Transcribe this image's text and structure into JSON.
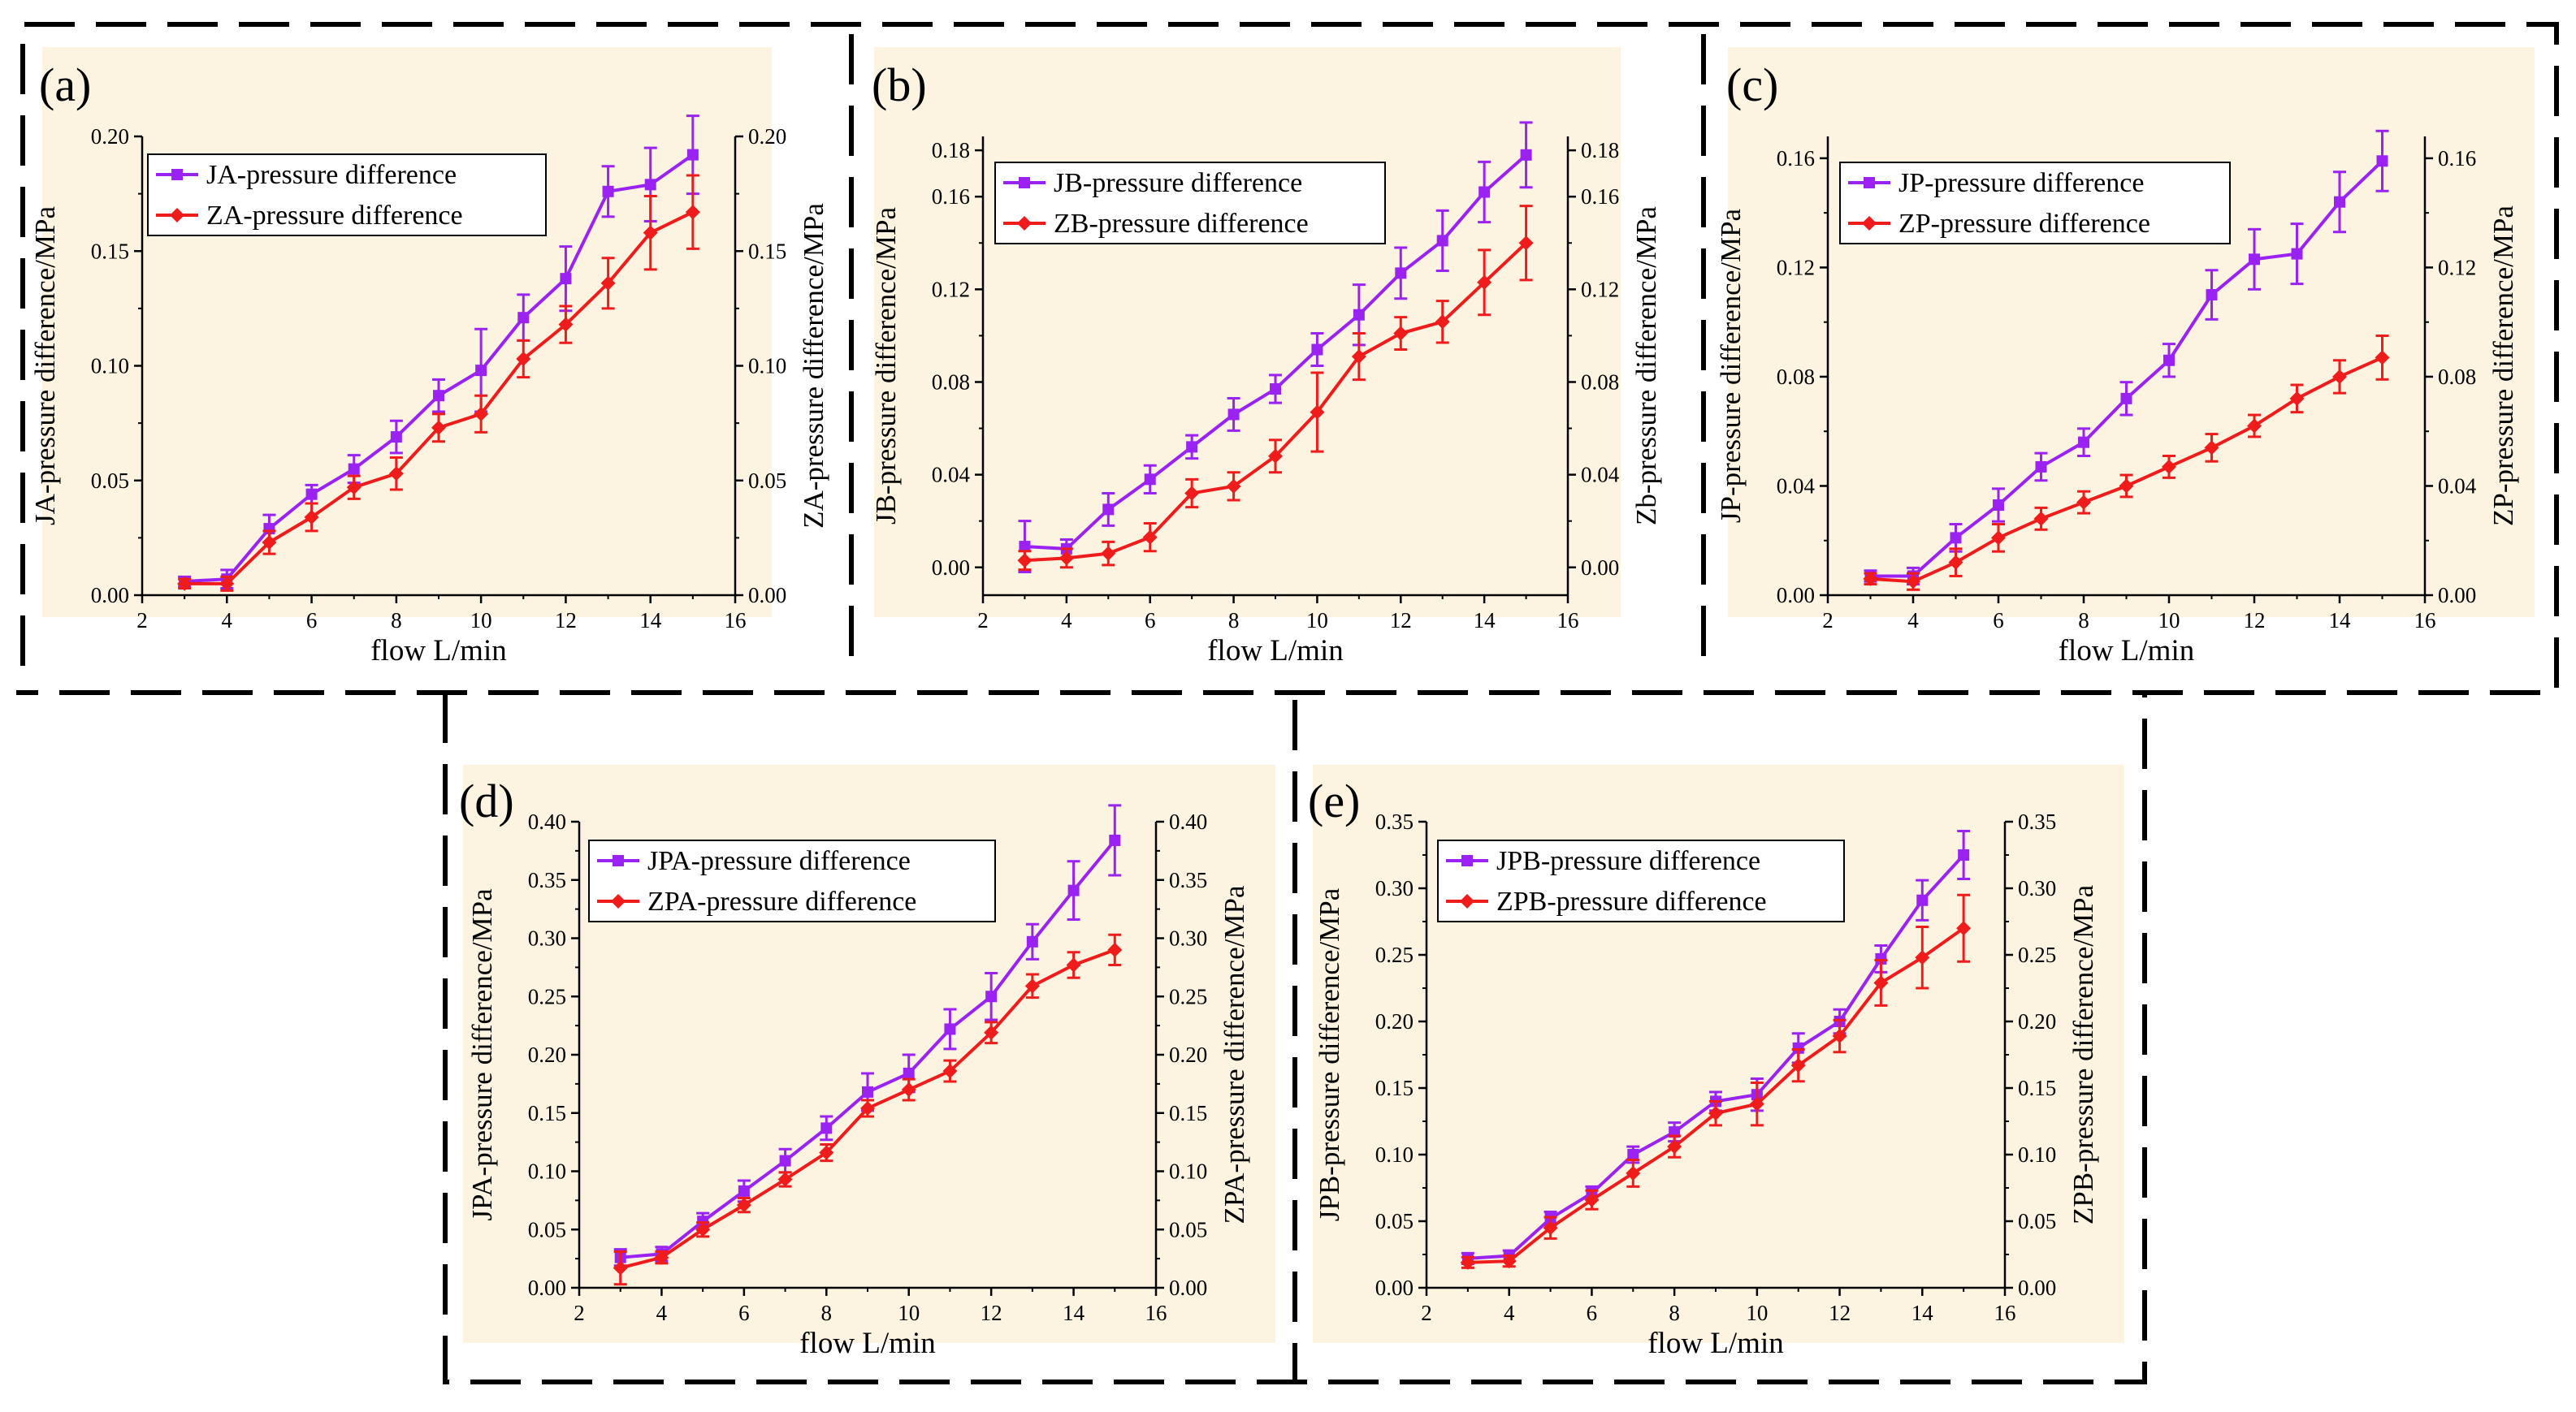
{
  "colors": {
    "panel_bg": "#fdf3e1",
    "series1": "#9a22f2",
    "series2": "#f01c1c",
    "border": "#000000"
  },
  "chart_data": [
    {
      "id": "a",
      "label": "(a)",
      "type": "line",
      "x": [
        3,
        4,
        5,
        6,
        7,
        8,
        9,
        10,
        11,
        12,
        13,
        14,
        15
      ],
      "xlabel": "flow L/min",
      "xlim": [
        2,
        16
      ],
      "xticks": [
        2,
        4,
        6,
        8,
        10,
        12,
        14,
        16
      ],
      "ylabel": "JA-pressure difference/MPa",
      "ylabel_right": "ZA-pressure difference/MPa",
      "ylim": [
        0,
        0.2
      ],
      "yticks": [
        "0.00",
        "0.05",
        "0.10",
        "0.15",
        "0.20"
      ],
      "series": [
        {
          "name": "JA-pressure difference",
          "values": [
            0.006,
            0.007,
            0.029,
            0.044,
            0.055,
            0.069,
            0.087,
            0.098,
            0.121,
            0.138,
            0.176,
            0.179,
            0.192
          ],
          "errors": [
            0.002,
            0.004,
            0.006,
            0.004,
            0.006,
            0.007,
            0.007,
            0.018,
            0.01,
            0.014,
            0.011,
            0.016,
            0.017
          ]
        },
        {
          "name": "ZA-pressure difference",
          "values": [
            0.005,
            0.005,
            0.023,
            0.034,
            0.047,
            0.053,
            0.073,
            0.079,
            0.103,
            0.118,
            0.136,
            0.158,
            0.167
          ],
          "errors": [
            0.002,
            0.003,
            0.005,
            0.006,
            0.005,
            0.007,
            0.006,
            0.008,
            0.008,
            0.008,
            0.011,
            0.016,
            0.016
          ]
        }
      ]
    },
    {
      "id": "b",
      "label": "(b)",
      "type": "line",
      "x": [
        3,
        4,
        5,
        6,
        7,
        8,
        9,
        10,
        11,
        12,
        13,
        14,
        15
      ],
      "xlabel": "flow L/min",
      "xlim": [
        2,
        16
      ],
      "xticks": [
        2,
        4,
        6,
        8,
        10,
        12,
        14,
        16
      ],
      "ylabel": "JB-pressure difference/MPa",
      "ylabel_right": "Zb-pressure difference/MPa",
      "ylim": [
        -0.012,
        0.186
      ],
      "yticks": [
        "0.00",
        "0.04",
        "0.08",
        "0.12",
        "0.16"
      ],
      "ytick_values": [
        0,
        0.04,
        0.08,
        0.12,
        0.16
      ],
      "extra_yticks": [
        "0.18"
      ],
      "extra_ytick_values": [
        0.18
      ],
      "series": [
        {
          "name": "JB-pressure difference",
          "values": [
            0.009,
            0.008,
            0.025,
            0.038,
            0.052,
            0.066,
            0.077,
            0.094,
            0.109,
            0.127,
            0.141,
            0.162,
            0.178
          ],
          "errors": [
            0.011,
            0.004,
            0.007,
            0.006,
            0.005,
            0.007,
            0.006,
            0.007,
            0.013,
            0.011,
            0.013,
            0.013,
            0.014
          ]
        },
        {
          "name": "ZB-pressure difference",
          "values": [
            0.003,
            0.004,
            0.006,
            0.013,
            0.032,
            0.035,
            0.048,
            0.067,
            0.091,
            0.101,
            0.106,
            0.123,
            0.14
          ],
          "errors": [
            0.004,
            0.004,
            0.005,
            0.006,
            0.006,
            0.006,
            0.007,
            0.017,
            0.01,
            0.007,
            0.009,
            0.014,
            0.016
          ]
        }
      ]
    },
    {
      "id": "c",
      "label": "(c)",
      "type": "line",
      "x": [
        3,
        4,
        5,
        6,
        7,
        8,
        9,
        10,
        11,
        12,
        13,
        14,
        15
      ],
      "xlabel": "flow L/min",
      "xlim": [
        2,
        16
      ],
      "xticks": [
        2,
        4,
        6,
        8,
        10,
        12,
        14,
        16
      ],
      "ylabel": "JP-pressure difference/MPa",
      "ylabel_right": "ZP-pressure difference/MPa",
      "ylim": [
        0,
        0.168
      ],
      "yticks": [
        "0.00",
        "0.04",
        "0.08",
        "0.12",
        "0.16"
      ],
      "ytick_values": [
        0,
        0.04,
        0.08,
        0.12,
        0.16
      ],
      "series": [
        {
          "name": "JP-pressure difference",
          "values": [
            0.007,
            0.007,
            0.021,
            0.033,
            0.047,
            0.056,
            0.072,
            0.086,
            0.11,
            0.123,
            0.125,
            0.144,
            0.159
          ],
          "errors": [
            0.002,
            0.003,
            0.005,
            0.006,
            0.005,
            0.005,
            0.006,
            0.006,
            0.009,
            0.011,
            0.011,
            0.011,
            0.011
          ]
        },
        {
          "name": "ZP-pressure difference",
          "values": [
            0.006,
            0.005,
            0.012,
            0.021,
            0.028,
            0.034,
            0.04,
            0.047,
            0.054,
            0.062,
            0.072,
            0.08,
            0.087
          ],
          "errors": [
            0.002,
            0.003,
            0.005,
            0.005,
            0.004,
            0.004,
            0.004,
            0.004,
            0.005,
            0.004,
            0.005,
            0.006,
            0.008
          ]
        }
      ]
    },
    {
      "id": "d",
      "label": "(d)",
      "type": "line",
      "x": [
        3,
        4,
        5,
        6,
        7,
        8,
        9,
        10,
        11,
        12,
        13,
        14,
        15
      ],
      "xlabel": "flow L/min",
      "xlim": [
        2,
        16
      ],
      "xticks": [
        2,
        4,
        6,
        8,
        10,
        12,
        14,
        16
      ],
      "ylabel": "JPA-pressure difference/MPa",
      "ylabel_right": "ZPA-pressure difference/MPa",
      "ylim": [
        0,
        0.4
      ],
      "yticks": [
        "0.00",
        "0.05",
        "0.10",
        "0.15",
        "0.20",
        "0.25",
        "0.30",
        "0.35",
        "0.40"
      ],
      "series": [
        {
          "name": "JPA-pressure difference",
          "values": [
            0.026,
            0.029,
            0.057,
            0.083,
            0.109,
            0.137,
            0.168,
            0.184,
            0.222,
            0.25,
            0.297,
            0.341,
            0.384
          ],
          "errors": [
            0.007,
            0.006,
            0.007,
            0.009,
            0.01,
            0.01,
            0.016,
            0.016,
            0.017,
            0.02,
            0.015,
            0.025,
            0.03
          ]
        },
        {
          "name": "ZPA-pressure difference",
          "values": [
            0.017,
            0.026,
            0.05,
            0.071,
            0.093,
            0.116,
            0.154,
            0.17,
            0.186,
            0.219,
            0.259,
            0.277,
            0.29
          ],
          "errors": [
            0.014,
            0.005,
            0.006,
            0.006,
            0.006,
            0.007,
            0.007,
            0.009,
            0.009,
            0.009,
            0.01,
            0.011,
            0.013
          ]
        }
      ]
    },
    {
      "id": "e",
      "label": "(e)",
      "type": "line",
      "x": [
        3,
        4,
        5,
        6,
        7,
        8,
        9,
        10,
        11,
        12,
        13,
        14,
        15
      ],
      "xlabel": "flow L/min",
      "xlim": [
        2,
        16
      ],
      "xticks": [
        2,
        4,
        6,
        8,
        10,
        12,
        14,
        16
      ],
      "ylabel": "JPB-pressure difference/MPa",
      "ylabel_right": "ZPB-pressure difference/MPa",
      "ylim": [
        0,
        0.35
      ],
      "yticks": [
        "0.00",
        "0.05",
        "0.10",
        "0.15",
        "0.20",
        "0.25",
        "0.30",
        "0.35"
      ],
      "series": [
        {
          "name": "JPB-pressure difference",
          "values": [
            0.022,
            0.024,
            0.052,
            0.071,
            0.1,
            0.117,
            0.14,
            0.145,
            0.18,
            0.2,
            0.247,
            0.291,
            0.325
          ],
          "errors": [
            0.004,
            0.004,
            0.005,
            0.005,
            0.006,
            0.007,
            0.007,
            0.012,
            0.011,
            0.009,
            0.01,
            0.015,
            0.018
          ]
        },
        {
          "name": "ZPB-pressure difference",
          "values": [
            0.019,
            0.02,
            0.045,
            0.066,
            0.086,
            0.106,
            0.131,
            0.138,
            0.167,
            0.189,
            0.229,
            0.248,
            0.27
          ],
          "errors": [
            0.004,
            0.004,
            0.008,
            0.007,
            0.01,
            0.008,
            0.009,
            0.016,
            0.012,
            0.012,
            0.017,
            0.023,
            0.025
          ]
        }
      ]
    }
  ]
}
